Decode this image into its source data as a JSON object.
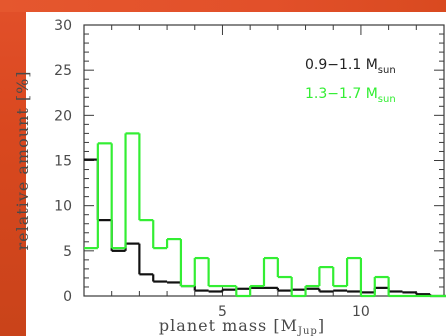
{
  "chart_data": {
    "type": "histogram",
    "xlabel": "planet mass [M",
    "xlabel_sub": "Jup",
    "xlabel_close": "]",
    "ylabel": "relative amount  [%]",
    "xlim": [
      0,
      13
    ],
    "ylim": [
      0,
      30
    ],
    "x_ticks": [
      5,
      10
    ],
    "y_ticks": [
      0,
      5,
      10,
      15,
      20,
      25,
      30
    ],
    "bin_width": 0.5,
    "bin_edges_start": 0,
    "series": [
      {
        "name": "0.9−1.1 M",
        "name_sub": "sun",
        "color": "#111111",
        "values": [
          15.1,
          8.4,
          5.0,
          5.8,
          2.4,
          1.6,
          1.5,
          1.1,
          0.6,
          0.5,
          0.7,
          0.8,
          0.9,
          0.9,
          0.6,
          0.7,
          0.8,
          0.5,
          0.6,
          0.5,
          0.4,
          0.9,
          0.5,
          0.4,
          0.2,
          0,
          0
        ]
      },
      {
        "name": "1.3−1.7 M",
        "name_sub": "sun",
        "color": "#33ee33",
        "values": [
          5.3,
          16.9,
          5.3,
          18.0,
          8.4,
          5.3,
          6.3,
          1.1,
          4.2,
          1.1,
          1.1,
          0,
          1.1,
          4.2,
          2.1,
          0,
          1.1,
          3.2,
          1.1,
          4.2,
          0,
          2.1,
          0,
          0,
          0,
          0,
          0
        ]
      }
    ]
  }
}
